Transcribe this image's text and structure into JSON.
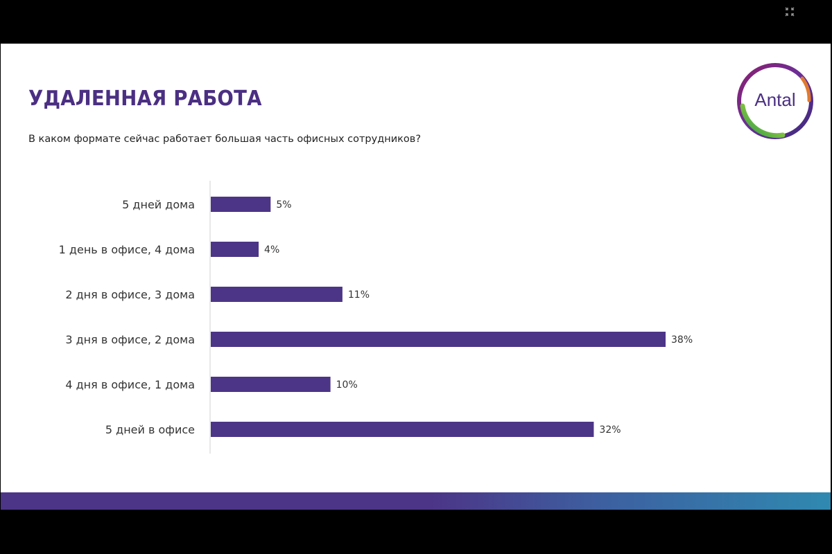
{
  "slide": {
    "title": "УДАЛЕННАЯ РАБОТА",
    "subtitle": "В каком формате сейчас работает большая часть офисных сотрудников?",
    "logo_text": "Antal"
  },
  "colors": {
    "accent": "#4c3587",
    "bar": "#4c3587",
    "label": "#333333"
  },
  "icons": {
    "exit_fullscreen": "exit-fullscreen-icon"
  },
  "chart_data": {
    "type": "bar",
    "orientation": "horizontal",
    "title": "В каком формате сейчас работает большая часть офисных сотрудников?",
    "categories": [
      "5 дней дома",
      "1 день в офисе, 4 дома",
      "2 дня в офисе, 3 дома",
      "3 дня в офисе, 2 дома",
      "4 дня в офисе, 1 дома",
      "5 дней в офисе"
    ],
    "values": [
      5,
      4,
      11,
      38,
      10,
      32
    ],
    "value_labels": [
      "5%",
      "4%",
      "11%",
      "38%",
      "10%",
      "32%"
    ],
    "unit": "%",
    "xlim": [
      0,
      38
    ],
    "grid": false,
    "legend": "none"
  }
}
